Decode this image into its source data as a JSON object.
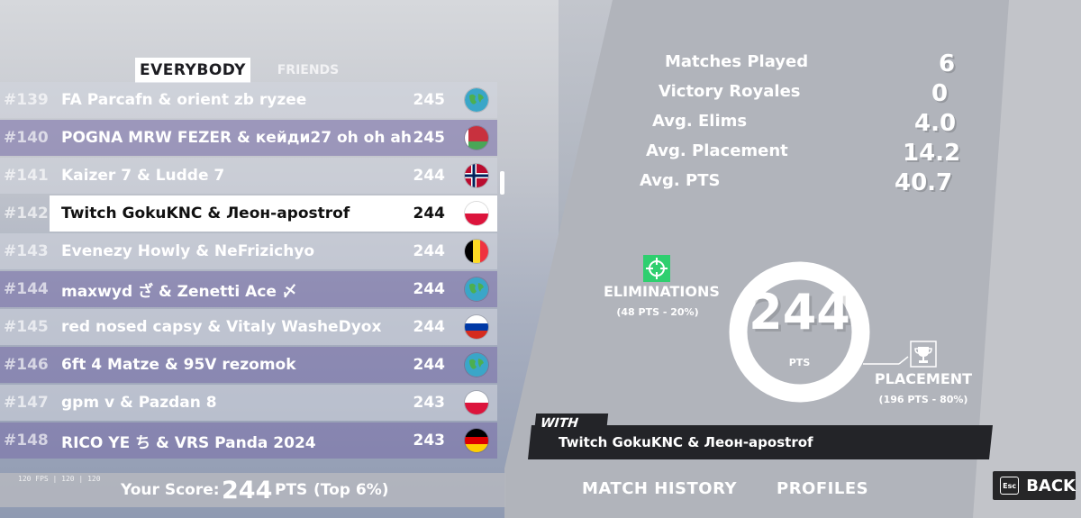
{
  "tabs": {
    "everybody": "EVERYBODY",
    "friends": "FRIENDS"
  },
  "leaderboard": [
    {
      "rank": "#139",
      "names": "FA Parcafn & orient zb ryzee",
      "points": "245",
      "flag": "globe"
    },
    {
      "rank": "#140",
      "names": "POGNA MRW FEZER & кейди27 oh oh ah",
      "points": "245",
      "flag": "belarus"
    },
    {
      "rank": "#141",
      "names": "Kaizer 7 & Ludde 7",
      "points": "244",
      "flag": "norway"
    },
    {
      "rank": "#142",
      "names": "Twitch GokuKNC & Леон-apostrof",
      "points": "244",
      "flag": "poland"
    },
    {
      "rank": "#143",
      "names": "Evenezy Howly & NeFrizichyo",
      "points": "244",
      "flag": "belgium"
    },
    {
      "rank": "#144",
      "names": "maxwyd ざ & Zenetti Ace 〆",
      "points": "244",
      "flag": "globe"
    },
    {
      "rank": "#145",
      "names": "red nosed capsy & Vitaly WasheDyox",
      "points": "244",
      "flag": "russia"
    },
    {
      "rank": "#146",
      "names": "6ft 4 Matze & 95V rezomok",
      "points": "244",
      "flag": "globe"
    },
    {
      "rank": "#147",
      "names": "gpm v & Pazdan 8",
      "points": "243",
      "flag": "poland"
    },
    {
      "rank": "#148",
      "names": "RICO YE ち & VRS Panda 2024",
      "points": "243",
      "flag": "germany"
    }
  ],
  "score_bar": {
    "fps": "120 FPS | 120 | 120",
    "label": "Your Score:",
    "value": "244",
    "unit": "PTS",
    "top": "(Top 6%)"
  },
  "stats": [
    {
      "label": "Matches Played",
      "value": "6"
    },
    {
      "label": "Victory Royales",
      "value": "0"
    },
    {
      "label": "Avg. Elims",
      "value": "4.0"
    },
    {
      "label": "Avg. Placement",
      "value": "14.2"
    },
    {
      "label": "Avg. PTS",
      "value": "40.7"
    }
  ],
  "breakdown": {
    "total": "244",
    "total_unit": "PTS",
    "eliminations_label": "ELIMINATIONS",
    "eliminations_sub": "(48 PTS - 20%)",
    "eliminations_fraction": 0.2,
    "placement_label": "PLACEMENT",
    "placement_sub": "(196 PTS - 80%)"
  },
  "with": {
    "tag": "WITH",
    "names": "Twitch GokuKNC & Леон-apostrof"
  },
  "nav": {
    "match_history": "MATCH HISTORY",
    "profiles": "PROFILES",
    "back": "BACK",
    "esc": "Esc"
  },
  "colors": {
    "accent_green": "#2fcf6f",
    "highlight_row": "#ffffff",
    "alt_row": "#7a6eaa"
  }
}
